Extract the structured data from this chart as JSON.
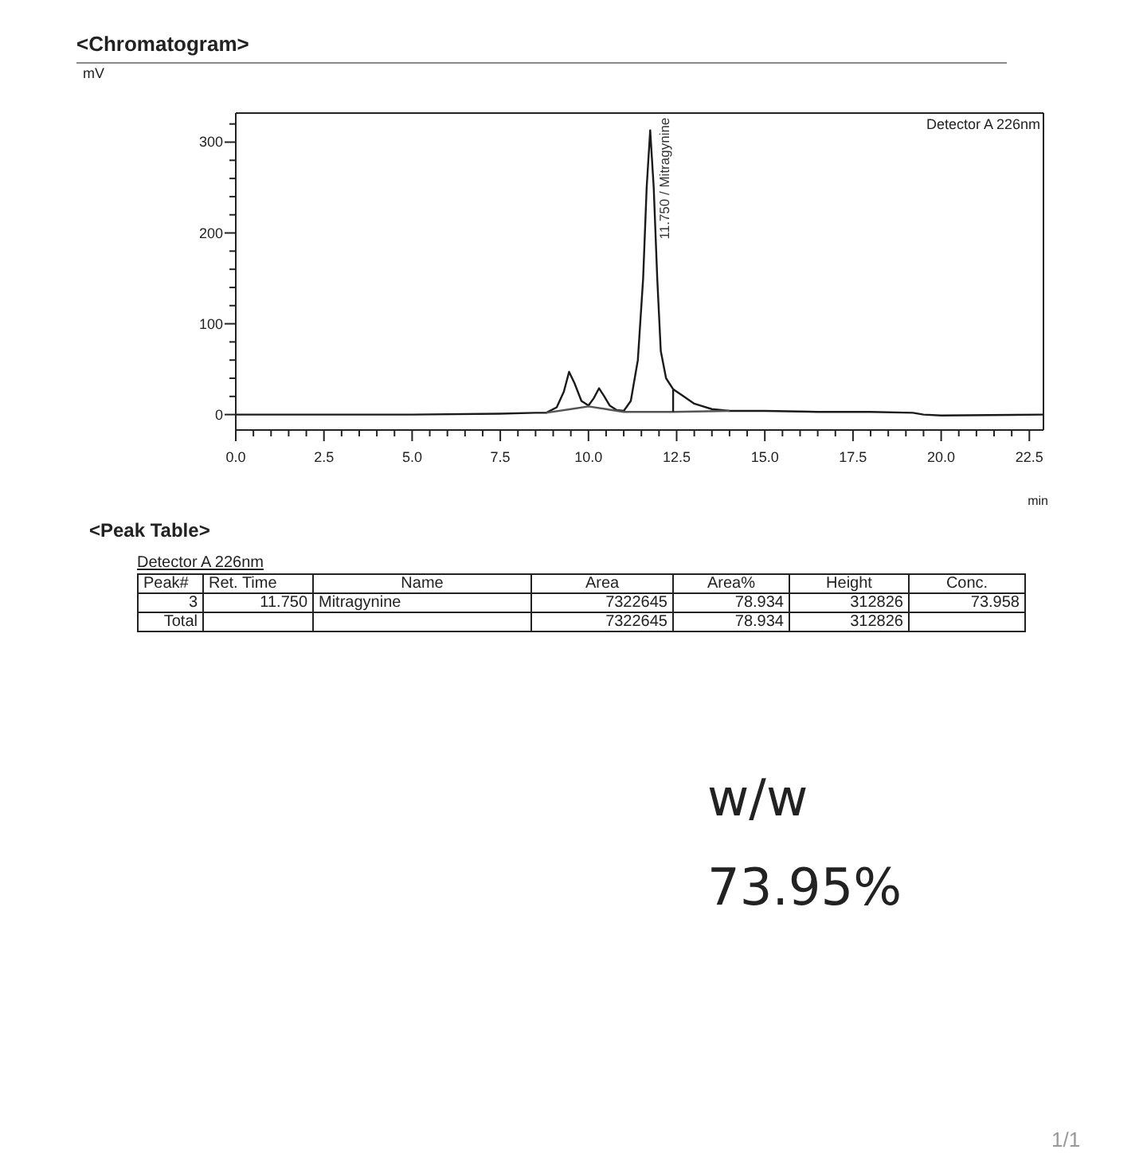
{
  "chart_data": {
    "type": "line",
    "title": "<Chromatogram>",
    "xlabel": "min",
    "xlim": [
      0,
      22.9
    ],
    "ylim": [
      -17,
      332
    ],
    "xticks": [
      {
        "value": 0,
        "label": "0.0"
      },
      {
        "value": 0.5,
        "label": null
      },
      {
        "value": 1,
        "label": null
      },
      {
        "value": 1.5,
        "label": null
      },
      {
        "value": 2,
        "label": null
      },
      {
        "value": 2.5,
        "label": "2.5"
      },
      {
        "value": 3,
        "label": null
      },
      {
        "value": 3.5,
        "label": null
      },
      {
        "value": 4,
        "label": null
      },
      {
        "value": 4.5,
        "label": null
      },
      {
        "value": 5,
        "label": "5.0"
      },
      {
        "value": 5.5,
        "label": null
      },
      {
        "value": 6,
        "label": null
      },
      {
        "value": 6.5,
        "label": null
      },
      {
        "value": 7,
        "label": null
      },
      {
        "value": 7.5,
        "label": "7.5"
      },
      {
        "value": 8,
        "label": null
      },
      {
        "value": 8.5,
        "label": null
      },
      {
        "value": 9,
        "label": null
      },
      {
        "value": 9.5,
        "label": null
      },
      {
        "value": 10,
        "label": "10.0"
      },
      {
        "value": 10.5,
        "label": null
      },
      {
        "value": 11,
        "label": null
      },
      {
        "value": 11.5,
        "label": null
      },
      {
        "value": 12,
        "label": null
      },
      {
        "value": 12.5,
        "label": "12.5"
      },
      {
        "value": 13,
        "label": null
      },
      {
        "value": 13.5,
        "label": null
      },
      {
        "value": 14,
        "label": null
      },
      {
        "value": 14.5,
        "label": null
      },
      {
        "value": 15,
        "label": "15.0"
      },
      {
        "value": 15.5,
        "label": null
      },
      {
        "value": 16,
        "label": null
      },
      {
        "value": 16.5,
        "label": null
      },
      {
        "value": 17,
        "label": null
      },
      {
        "value": 17.5,
        "label": "17.5"
      },
      {
        "value": 18,
        "label": null
      },
      {
        "value": 18.5,
        "label": null
      },
      {
        "value": 19,
        "label": null
      },
      {
        "value": 19.5,
        "label": null
      },
      {
        "value": 20,
        "label": "20.0"
      },
      {
        "value": 20.5,
        "label": null
      },
      {
        "value": 21,
        "label": null
      },
      {
        "value": 21.5,
        "label": null
      },
      {
        "value": 22,
        "label": null
      },
      {
        "value": 22.5,
        "label": "22.5"
      }
    ],
    "yticks": [
      0,
      {
        "value": 20,
        "label": null
      },
      {
        "value": 40,
        "label": null
      },
      {
        "value": 60,
        "label": null
      },
      {
        "value": 80,
        "label": null
      },
      100,
      {
        "value": 120,
        "label": null
      },
      {
        "value": 140,
        "label": null
      },
      {
        "value": 160,
        "label": null
      },
      {
        "value": 180,
        "label": null
      },
      200,
      {
        "value": 220,
        "label": null
      },
      {
        "value": 240,
        "label": null
      },
      {
        "value": 260,
        "label": null
      },
      {
        "value": 280,
        "label": null
      },
      300,
      {
        "value": 320,
        "label": null
      }
    ],
    "marker": "none",
    "line_style": "solid",
    "series": [
      {
        "color": "#1a1a1a",
        "x": [
          0,
          5,
          7.5,
          8.5,
          8.8,
          9.1,
          9.3,
          9.45,
          9.6,
          9.8,
          10.0,
          10.15,
          10.3,
          10.45,
          10.6,
          10.8,
          11.0,
          11.2,
          11.4,
          11.55,
          11.65,
          11.75,
          11.85,
          11.95,
          12.05,
          12.2,
          12.4,
          12.7,
          13,
          13.5,
          14,
          15,
          16.5,
          18,
          19.2,
          19.5,
          20,
          22.9
        ],
        "values": [
          0,
          0,
          1,
          2,
          2,
          8,
          25,
          47,
          35,
          15,
          10,
          18,
          29,
          20,
          10,
          5,
          4,
          15,
          60,
          150,
          250,
          313,
          250,
          150,
          70,
          40,
          28,
          20,
          12,
          6,
          4,
          4,
          3,
          3,
          2,
          0,
          -1,
          0
        ]
      },
      {
        "color": "#555555",
        "x": [
          8.8,
          9.5,
          10.0,
          10.5,
          11.0,
          12.4,
          14
        ],
        "values": [
          2,
          6,
          9,
          6,
          3,
          3,
          4
        ]
      },
      {
        "color": "#1a1a1a",
        "x": [
          12.4,
          12.4
        ],
        "values": [
          3,
          28
        ]
      }
    ],
    "annotations": [
      "Detector A 226nm",
      "mV",
      {
        "text": "11.750 / Mitragynine",
        "x": 11.75,
        "y": 313
      },
      "<Peak Table>",
      "Detector A 226nm",
      "Peak#",
      "Ret. Time",
      "Name",
      "Area",
      "Area%",
      "Height",
      "Conc.",
      "3",
      "11.750",
      "Mitragynine",
      "7322645",
      "78.934",
      "312826",
      "73.958",
      "Total",
      "7322645",
      "78.934",
      "312826",
      "w/w",
      "73.95%",
      "1/1"
    ]
  }
}
